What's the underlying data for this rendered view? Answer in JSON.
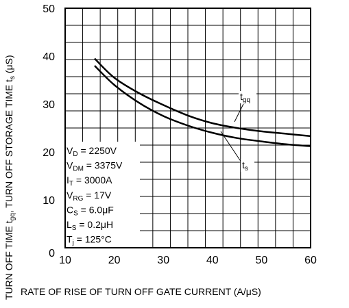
{
  "chart_data": {
    "type": "line",
    "xlabel": "RATE OF RISE OF TURN OFF GATE CURRENT  (A/μS)",
    "ylabel": {
      "prefix": "TURN OFF TIME  ",
      "sym1": "t",
      "sub1": "gq",
      "mid": ", TURN OFF STORAGE TIME  ",
      "sym2": "t",
      "sub2": "s",
      "suffix": "  (μS)"
    },
    "xlim": [
      10,
      60
    ],
    "ylim": [
      0,
      50
    ],
    "xticks": [
      10,
      20,
      30,
      40,
      50,
      60
    ],
    "yticks": [
      0,
      10,
      20,
      30,
      40,
      50
    ],
    "grid": true,
    "series": [
      {
        "name": "tgq",
        "label": {
          "sym": "t",
          "sub": "gq"
        },
        "x": [
          16,
          20,
          25,
          30,
          35,
          40,
          45,
          50,
          55,
          60
        ],
        "y": [
          39.5,
          35.5,
          32.3,
          29.8,
          27.6,
          26.0,
          25.0,
          24.3,
          23.8,
          23.3
        ]
      },
      {
        "name": "ts",
        "label": {
          "sym": "t",
          "sub": "s"
        },
        "x": [
          16,
          20,
          25,
          30,
          35,
          40,
          45,
          50,
          55,
          60
        ],
        "y": [
          38.0,
          34.0,
          30.3,
          27.5,
          25.5,
          24.0,
          22.9,
          22.2,
          21.6,
          21.2
        ]
      }
    ],
    "conditions": [
      {
        "main": "V",
        "sub": "D",
        "rest": " = 2250V"
      },
      {
        "main": "V",
        "sub": "DM",
        "rest": " = 3375V"
      },
      {
        "main": "I",
        "sub": "T",
        "rest": " = 3000A"
      },
      {
        "main": "V",
        "sub": "RG",
        "rest": " = 17V"
      },
      {
        "main": "C",
        "sub": "S",
        "rest": " = 6.0μF"
      },
      {
        "main": "L",
        "sub": "S",
        "rest": " = 0.2μH"
      },
      {
        "main": "T",
        "sub": "j",
        "rest": " = 125°C"
      }
    ]
  }
}
